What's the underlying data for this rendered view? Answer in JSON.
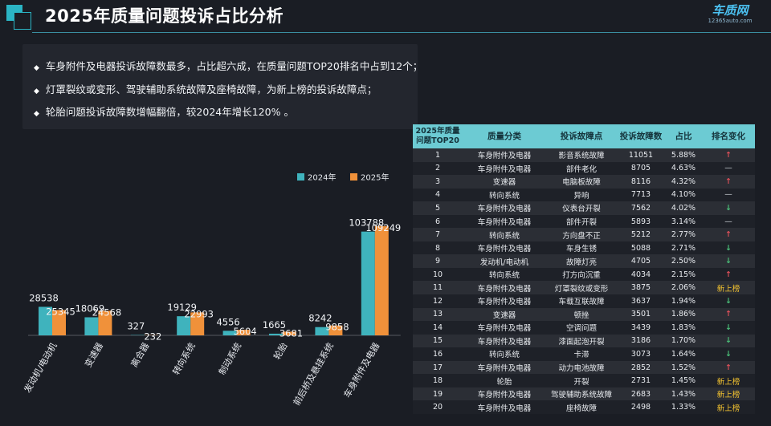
{
  "header": {
    "title": "2025年质量问题投诉占比分析",
    "brand_main": "车质网",
    "brand_sub": "12365auto.com"
  },
  "bullets": [
    "车身附件及电器投诉故障数最多，占比超六成，在质量问题TOP20排名中占到12个；",
    "灯罩裂纹或变形、驾驶辅助系统故障及座椅故障，为新上榜的投诉故障点；",
    "轮胎问题投诉故障数增幅翻倍，较2024年增长120% 。"
  ],
  "chart_data": {
    "type": "bar",
    "title": "",
    "xlabel": "",
    "ylabel": "",
    "categories": [
      "发动机/电动机",
      "变速器",
      "离合器",
      "转向系统",
      "制动系统",
      "轮胎",
      "前后桥及悬挂系统",
      "车身附件及电器"
    ],
    "series": [
      {
        "name": "2024年",
        "values": [
          28538,
          18069,
          327,
          19129,
          4556,
          1665,
          8242,
          103788
        ],
        "color": "#3fb3bd"
      },
      {
        "name": "2025年",
        "values": [
          25345,
          24568,
          232,
          22993,
          5604,
          3681,
          9858,
          109249
        ],
        "color": "#f0913a"
      }
    ],
    "ylim": [
      0,
      130000
    ],
    "legend_position": "top-right",
    "grid": false
  },
  "table": {
    "headers": [
      "2025年质量问题TOP20",
      "质量分类",
      "投诉故障点",
      "投诉故障数",
      "占比",
      "排名变化"
    ],
    "rows": [
      {
        "rank": "1",
        "category": "车身附件及电器",
        "fault": "影音系统故障",
        "count": "11051",
        "share": "5.88%",
        "change": "up"
      },
      {
        "rank": "2",
        "category": "车身附件及电器",
        "fault": "部件老化",
        "count": "8705",
        "share": "4.63%",
        "change": "flat"
      },
      {
        "rank": "3",
        "category": "变速器",
        "fault": "电脑板故障",
        "count": "8116",
        "share": "4.32%",
        "change": "up"
      },
      {
        "rank": "4",
        "category": "转向系统",
        "fault": "异响",
        "count": "7713",
        "share": "4.10%",
        "change": "flat"
      },
      {
        "rank": "5",
        "category": "车身附件及电器",
        "fault": "仪表台开裂",
        "count": "7562",
        "share": "4.02%",
        "change": "down"
      },
      {
        "rank": "6",
        "category": "车身附件及电器",
        "fault": "部件开裂",
        "count": "5893",
        "share": "3.14%",
        "change": "flat"
      },
      {
        "rank": "7",
        "category": "转向系统",
        "fault": "方向盘不正",
        "count": "5212",
        "share": "2.77%",
        "change": "up"
      },
      {
        "rank": "8",
        "category": "车身附件及电器",
        "fault": "车身生锈",
        "count": "5088",
        "share": "2.71%",
        "change": "down"
      },
      {
        "rank": "9",
        "category": "发动机/电动机",
        "fault": "故障灯亮",
        "count": "4705",
        "share": "2.50%",
        "change": "down"
      },
      {
        "rank": "10",
        "category": "转向系统",
        "fault": "打方向沉重",
        "count": "4034",
        "share": "2.15%",
        "change": "up"
      },
      {
        "rank": "11",
        "category": "车身附件及电器",
        "fault": "灯罩裂纹或变形",
        "count": "3875",
        "share": "2.06%",
        "change": "new"
      },
      {
        "rank": "12",
        "category": "车身附件及电器",
        "fault": "车载互联故障",
        "count": "3637",
        "share": "1.94%",
        "change": "down"
      },
      {
        "rank": "13",
        "category": "变速器",
        "fault": "顿挫",
        "count": "3501",
        "share": "1.86%",
        "change": "up"
      },
      {
        "rank": "14",
        "category": "车身附件及电器",
        "fault": "空调问题",
        "count": "3439",
        "share": "1.83%",
        "change": "down"
      },
      {
        "rank": "15",
        "category": "车身附件及电器",
        "fault": "漆面起泡开裂",
        "count": "3186",
        "share": "1.70%",
        "change": "down"
      },
      {
        "rank": "16",
        "category": "转向系统",
        "fault": "卡滞",
        "count": "3073",
        "share": "1.64%",
        "change": "down"
      },
      {
        "rank": "17",
        "category": "车身附件及电器",
        "fault": "动力电池故障",
        "count": "2852",
        "share": "1.52%",
        "change": "up"
      },
      {
        "rank": "18",
        "category": "轮胎",
        "fault": "开裂",
        "count": "2731",
        "share": "1.45%",
        "change": "new"
      },
      {
        "rank": "19",
        "category": "车身附件及电器",
        "fault": "驾驶辅助系统故障",
        "count": "2683",
        "share": "1.43%",
        "change": "new"
      },
      {
        "rank": "20",
        "category": "车身附件及电器",
        "fault": "座椅故障",
        "count": "2498",
        "share": "1.33%",
        "change": "new"
      }
    ],
    "change_symbols": {
      "up": "↑",
      "down": "↓",
      "flat": "—",
      "new": "新上榜"
    }
  }
}
